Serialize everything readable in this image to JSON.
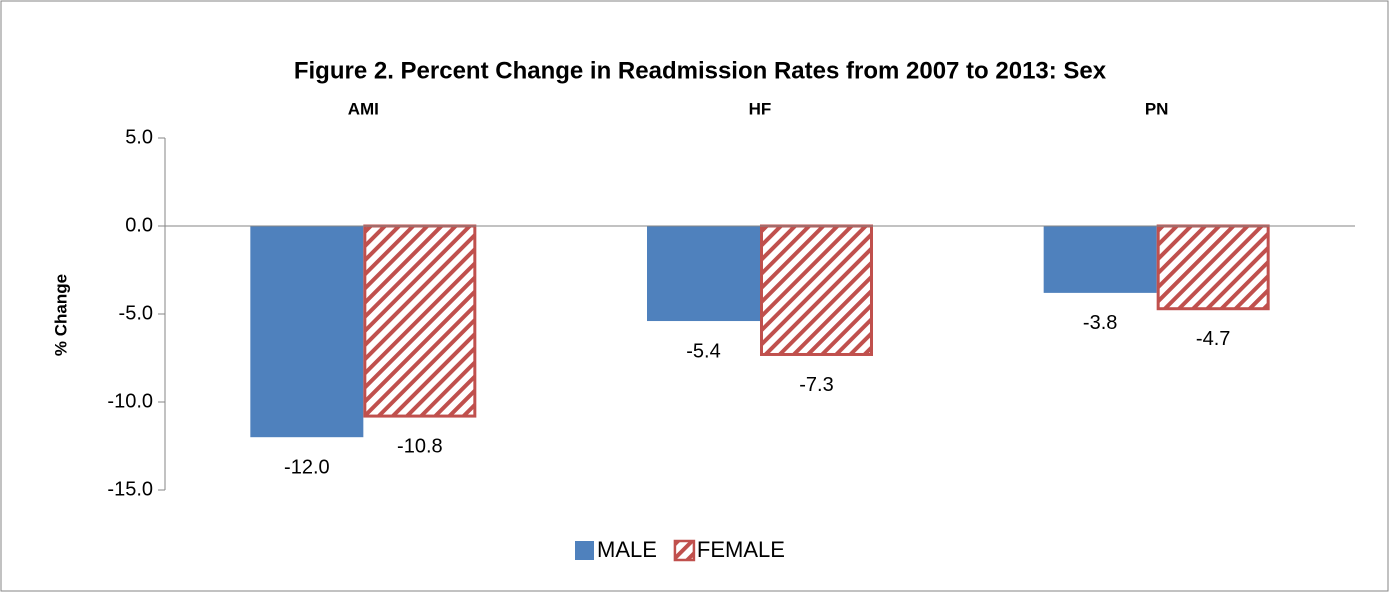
{
  "chart_data": {
    "type": "bar",
    "title": "Figure 2. Percent Change in Readmission Rates from 2007 to 2013: Sex",
    "y_label": "% Change",
    "categories": [
      "AMI",
      "HF",
      "PN"
    ],
    "series": [
      {
        "name": "MALE",
        "color": "#4f81bd",
        "hatch": false,
        "values": [
          -12.0,
          -5.4,
          -3.8
        ],
        "value_labels": [
          "-12.0",
          "-5.4",
          "-3.8"
        ]
      },
      {
        "name": "FEMALE",
        "color": "#c0504d",
        "hatch": true,
        "values": [
          -10.8,
          -7.3,
          -4.7
        ],
        "value_labels": [
          "-10.8",
          "-7.3",
          "-4.7"
        ]
      }
    ],
    "ylim": [
      -15,
      5
    ],
    "yticks": [
      {
        "value": 5,
        "label": "5.0"
      },
      {
        "value": 0,
        "label": "0.0"
      },
      {
        "value": -5,
        "label": "-5.0"
      },
      {
        "value": -10,
        "label": "-10.0"
      },
      {
        "value": -15,
        "label": "-15.0"
      }
    ],
    "grid": false,
    "legend": "bottom"
  }
}
